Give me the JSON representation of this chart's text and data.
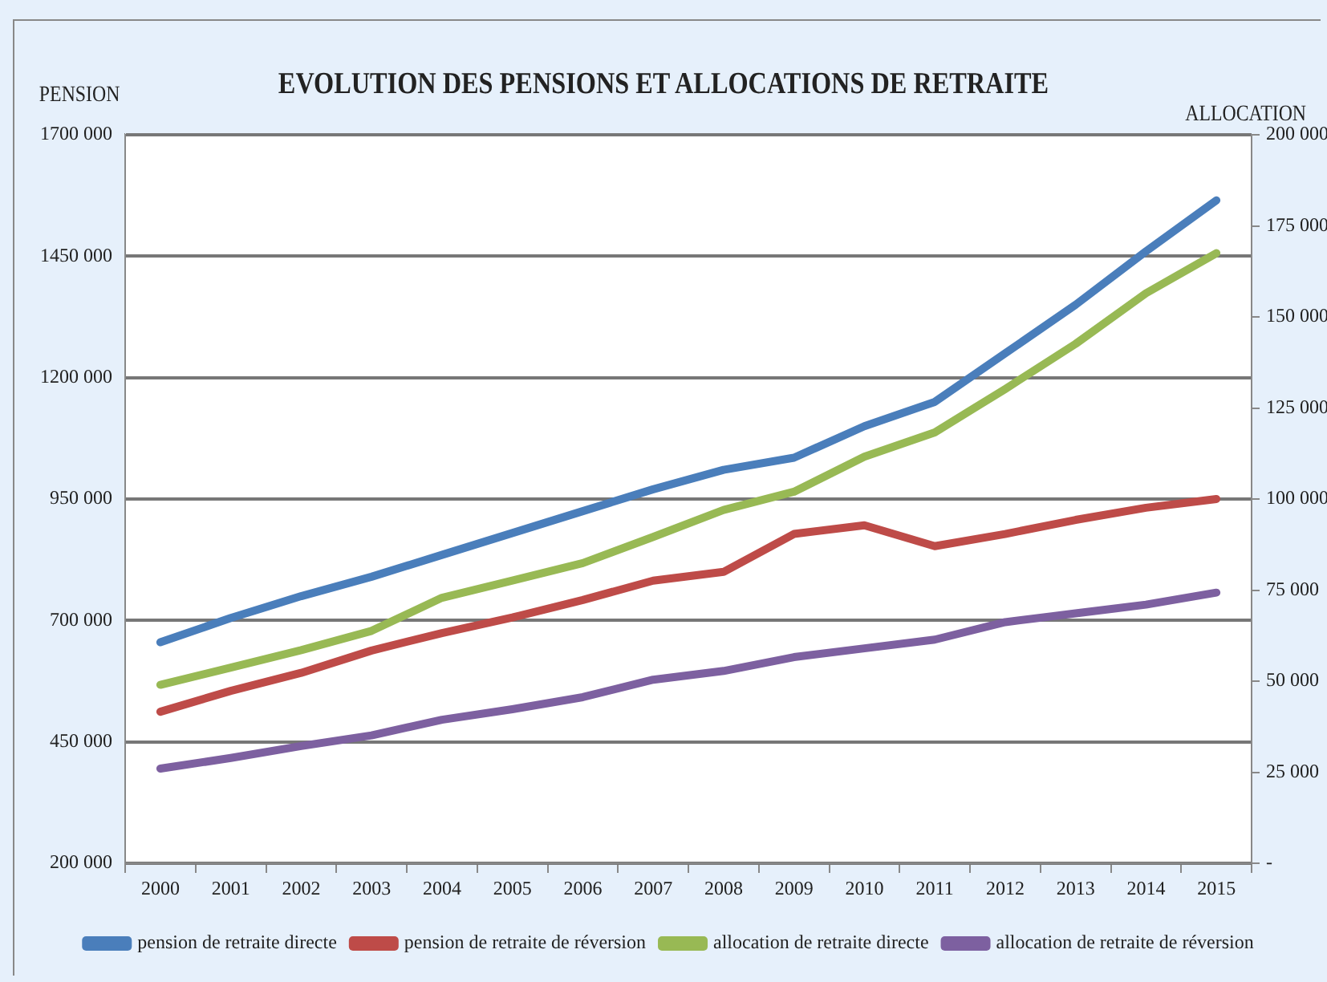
{
  "chart_data": {
    "type": "line",
    "title": "EVOLUTION DES PENSIONS ET ALLOCATIONS DE RETRAITE",
    "ylabel": "PENSION",
    "y2label": "ALLOCATION",
    "categories": [
      "2000",
      "2001",
      "2002",
      "2003",
      "2004",
      "2005",
      "2006",
      "2007",
      "2008",
      "2009",
      "2010",
      "2011",
      "2012",
      "2013",
      "2014",
      "2015"
    ],
    "series": [
      {
        "name": "pension de retraite directe",
        "color": "#4a7ebb",
        "values": [
          655000,
          705000,
          750000,
          790000,
          835000,
          880000,
          925000,
          970000,
          1010000,
          1035000,
          1100000,
          1150000,
          1250000,
          1350000,
          1460000,
          1565000
        ]
      },
      {
        "name": "pension de retraite de réversion",
        "color": "#be4b48",
        "values": [
          512000,
          555000,
          592000,
          638000,
          674000,
          706000,
          742000,
          782000,
          800000,
          878000,
          896000,
          853000,
          878000,
          907000,
          932000,
          950000
        ]
      },
      {
        "name": "allocation de retraite directe",
        "color": "#98b954",
        "axis": "y2",
        "values": [
          49000,
          53700,
          58500,
          63800,
          72900,
          77600,
          82400,
          89600,
          97000,
          102000,
          111600,
          118300,
          130200,
          142600,
          156500,
          167500
        ]
      },
      {
        "name": "allocation de retraite de réversion",
        "color": "#7d60a0",
        "axis": "y2",
        "values": [
          26000,
          28900,
          32200,
          35100,
          39400,
          42300,
          45600,
          50400,
          52800,
          56600,
          59000,
          61400,
          66200,
          68600,
          71000,
          74300
        ]
      }
    ],
    "ylim": [
      200000,
      1700000
    ],
    "yticks": [
      {
        "value": 200000,
        "label": "200 000"
      },
      {
        "value": 450000,
        "label": "450 000"
      },
      {
        "value": 700000,
        "label": "700 000"
      },
      {
        "value": 950000,
        "label": "950 000"
      },
      {
        "value": 1200000,
        "label": "1200 000"
      },
      {
        "value": 1450000,
        "label": "1450 000"
      },
      {
        "value": 1700000,
        "label": "1700 000"
      }
    ],
    "y2lim": [
      0,
      200000
    ],
    "y2ticks": [
      {
        "value": 0,
        "label": "-"
      },
      {
        "value": 25000,
        "label": "25 000"
      },
      {
        "value": 50000,
        "label": "50 000"
      },
      {
        "value": 75000,
        "label": "75 000"
      },
      {
        "value": 100000,
        "label": "100 000"
      },
      {
        "value": 125000,
        "label": "125 000"
      },
      {
        "value": 150000,
        "label": "150 000"
      },
      {
        "value": 175000,
        "label": "175 000"
      },
      {
        "value": 200000,
        "label": "200 000"
      }
    ],
    "grid": "y",
    "legend": "bottom",
    "marker": "none",
    "line_style": "solid"
  }
}
